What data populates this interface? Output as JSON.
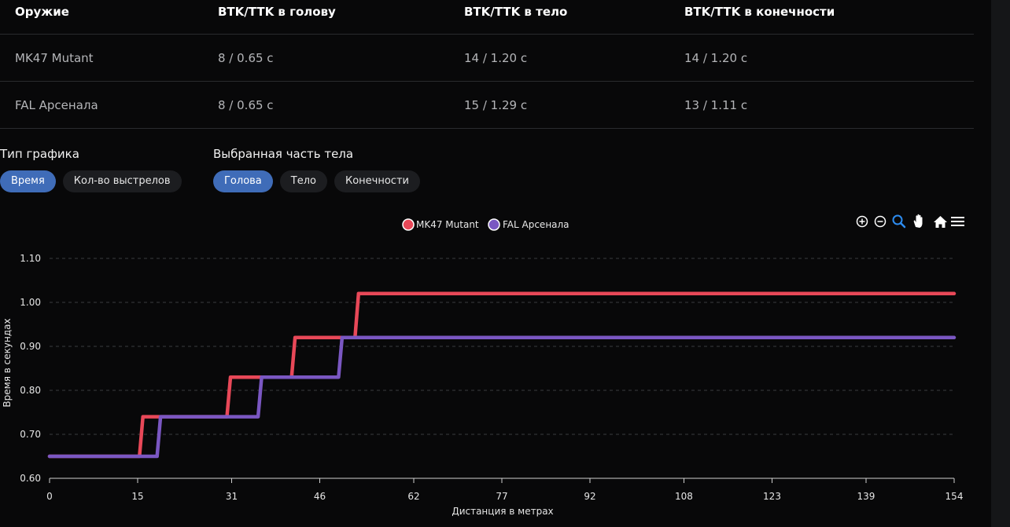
{
  "table": {
    "headers": [
      "Оружие",
      "BTK/TTK в голову",
      "BTK/TTK в тело",
      "BTK/TTK в конечности"
    ],
    "rows": [
      [
        "MK47 Mutant",
        "8 / 0.65 с",
        "14 / 1.20 с",
        "14 / 1.20 с"
      ],
      [
        "FAL Арсенала",
        "8 / 0.65 с",
        "15 / 1.29 с",
        "13 / 1.11 с"
      ]
    ]
  },
  "filters": {
    "chart_type": {
      "label": "Тип графика",
      "options": [
        "Время",
        "Кол-во выстрелов"
      ],
      "selected": "Время"
    },
    "body_part": {
      "label": "Выбранная часть тела",
      "options": [
        "Голова",
        "Тело",
        "Конечности"
      ],
      "selected": "Голова"
    }
  },
  "toolbar": {
    "icons": [
      "zoom-in-icon",
      "zoom-out-icon",
      "selection-zoom-icon",
      "pan-hand-icon",
      "reset-home-icon",
      "menu-icon"
    ],
    "active": "selection-zoom-icon"
  },
  "chart_data": {
    "type": "line",
    "step": true,
    "title": "",
    "xlabel": "Дистанция в метрах",
    "ylabel": "Время в секундах",
    "xlim": [
      0,
      154
    ],
    "ylim": [
      0.6,
      1.1
    ],
    "x_ticks": [
      "0",
      "15",
      "31",
      "46",
      "62",
      "77",
      "92",
      "108",
      "123",
      "139",
      "154"
    ],
    "y_ticks": [
      "0.60",
      "0.70",
      "0.80",
      "0.90",
      "1.00",
      "1.10"
    ],
    "grid": "horizontal-dashed",
    "legend": "top-center",
    "series": [
      {
        "name": "MK47 Mutant",
        "color": "#e84858",
        "x": [
          0,
          15.3,
          15.9,
          30.2,
          30.8,
          41.2,
          41.8,
          52.0,
          52.6,
          154
        ],
        "y": [
          0.65,
          0.65,
          0.74,
          0.74,
          0.83,
          0.83,
          0.92,
          0.92,
          1.02,
          1.02
        ]
      },
      {
        "name": "FAL Арсенала",
        "color": "#7a57c2",
        "x": [
          0,
          18.3,
          18.9,
          35.5,
          36.1,
          49.2,
          49.8,
          154
        ],
        "y": [
          0.65,
          0.65,
          0.74,
          0.74,
          0.83,
          0.83,
          0.92,
          0.92
        ]
      }
    ]
  }
}
